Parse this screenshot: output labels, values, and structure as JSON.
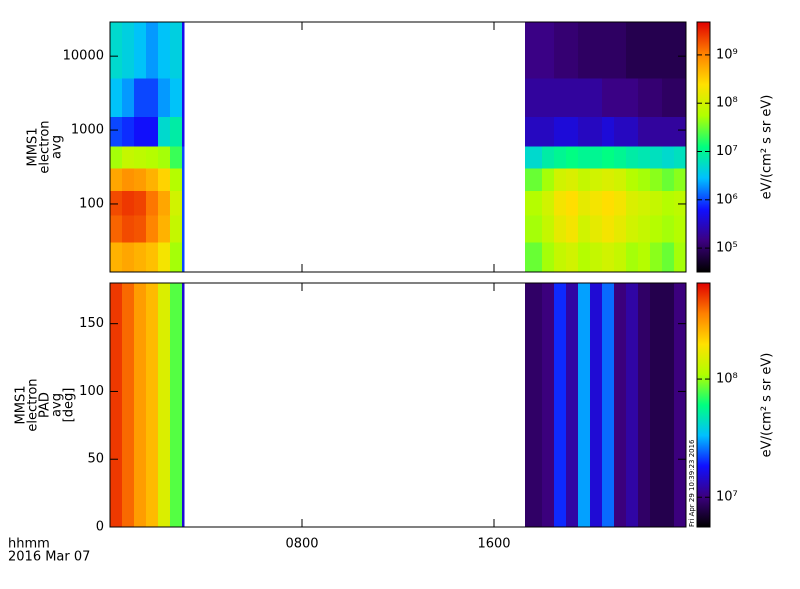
{
  "chart_data": [
    {
      "type": "heatmap",
      "ylabel": [
        "MMS1",
        "electron",
        "avg"
      ],
      "zlabel": "eV/(cm² s sr eV)",
      "xlim": [
        0,
        24
      ],
      "xticks": [
        8,
        16
      ],
      "ylim": [
        12,
        29000
      ],
      "ylog": true,
      "yticks": [
        100,
        1000,
        10000
      ],
      "zlim": [
        32000,
        4800000000
      ],
      "zlog": true,
      "zticks": [
        {
          "value": 100000,
          "label": "10⁵"
        },
        {
          "value": 1000000,
          "label": "10⁶"
        },
        {
          "value": 10000000,
          "label": "10⁷"
        },
        {
          "value": 100000000,
          "label": "10⁸"
        },
        {
          "value": 1000000000,
          "label": "10⁹"
        }
      ],
      "colormap": [
        "#000000",
        "#3c0080",
        "#1010ff",
        "#00c0ff",
        "#00ff80",
        "#b0ff00",
        "#ffe000",
        "#ff8000",
        "#e00000"
      ],
      "x_bins": [
        0,
        0.5,
        1,
        1.5,
        2,
        2.5,
        3,
        3.1,
        17.3,
        18,
        18.5,
        19,
        19.5,
        20,
        20.5,
        21,
        21.5,
        22,
        22.5,
        23,
        23.5,
        24
      ],
      "y_bins": [
        12,
        30,
        70,
        150,
        300,
        600,
        1500,
        5000,
        29000
      ],
      "values": [
        [
          500000000,
          600000000,
          500000000,
          400000000,
          200000000,
          50000000,
          1000000,
          null,
          30000000,
          50000000,
          80000000,
          100000000,
          60000000,
          80000000,
          100000000,
          80000000,
          50000000,
          60000000,
          40000000,
          30000000,
          50000000
        ],
        [
          1500000000,
          2000000000,
          1800000000,
          1000000000,
          500000000,
          80000000,
          1000000,
          null,
          50000000,
          80000000,
          150000000,
          200000000,
          100000000,
          150000000,
          200000000,
          150000000,
          100000000,
          80000000,
          60000000,
          50000000,
          60000000
        ],
        [
          2000000000,
          2500000000,
          2200000000,
          1200000000,
          600000000,
          100000000,
          1000000,
          null,
          60000000,
          100000000,
          200000000,
          250000000,
          150000000,
          200000000,
          250000000,
          200000000,
          120000000,
          100000000,
          80000000,
          60000000,
          70000000
        ],
        [
          600000000,
          800000000,
          700000000,
          500000000,
          300000000,
          60000000,
          1000000,
          null,
          30000000,
          50000000,
          100000000,
          120000000,
          80000000,
          100000000,
          120000000,
          100000000,
          60000000,
          50000000,
          40000000,
          30000000,
          40000000
        ],
        [
          50000000,
          80000000,
          70000000,
          60000000,
          50000000,
          20000000,
          1000000,
          null,
          5000000,
          8000000,
          10000000,
          12000000,
          10000000,
          10000000,
          12000000,
          10000000,
          8000000,
          7000000,
          6000000,
          5000000,
          6000000
        ],
        [
          1000000,
          800000,
          600000,
          600000,
          5000000,
          8000000,
          500000,
          null,
          300000,
          300000,
          400000,
          400000,
          300000,
          300000,
          400000,
          300000,
          300000,
          200000,
          200000,
          200000,
          200000
        ],
        [
          3000000,
          2000000,
          1000000,
          1000000,
          2000000,
          3000000,
          500000,
          null,
          200000,
          200000,
          200000,
          200000,
          200000,
          200000,
          150000,
          150000,
          150000,
          120000,
          120000,
          100000,
          100000
        ],
        [
          5000000,
          4000000,
          3000000,
          2000000,
          3000000,
          4000000,
          500000,
          null,
          150000,
          150000,
          120000,
          120000,
          100000,
          100000,
          100000,
          100000,
          80000,
          80000,
          80000,
          80000,
          80000
        ]
      ]
    },
    {
      "type": "heatmap",
      "ylabel": [
        "MMS1",
        "electron",
        "PAD",
        "avg",
        "[deg]"
      ],
      "zlabel": "eV/(cm² s sr eV)",
      "xlabel_lines": [
        "hhmm",
        "2016 Mar 07"
      ],
      "timestamp": "Fri Apr 29 10:39:23 2016",
      "xlim": [
        0,
        24
      ],
      "xticks": [
        {
          "value": 8,
          "label": "0800"
        },
        {
          "value": 16,
          "label": "1600"
        }
      ],
      "ylim": [
        0,
        180
      ],
      "yticks": [
        0,
        50,
        100,
        150
      ],
      "zlim": [
        5600000,
        650000000
      ],
      "zlog": true,
      "zticks": [
        {
          "value": 10000000,
          "label": "10⁷"
        },
        {
          "value": 100000000,
          "label": "10⁸"
        }
      ],
      "colormap": [
        "#000000",
        "#3c0080",
        "#1010ff",
        "#00c0ff",
        "#00ff80",
        "#b0ff00",
        "#ffe000",
        "#ff8000",
        "#e00000"
      ],
      "x_bins": [
        0,
        0.5,
        1,
        1.5,
        2,
        2.5,
        3,
        3.1,
        17.3,
        18,
        18.5,
        19,
        19.5,
        20,
        20.5,
        21,
        21.5,
        22,
        22.5,
        23,
        23.5,
        24
      ],
      "y_bins": [
        0,
        180
      ],
      "values": [
        [
          500000000,
          400000000,
          300000000,
          250000000,
          150000000,
          80000000,
          15000000,
          null,
          9000000,
          10000000,
          20000000,
          12000000,
          30000000,
          15000000,
          25000000,
          10000000,
          12000000,
          9000000,
          8000000,
          8000000,
          10000000
        ]
      ]
    }
  ]
}
